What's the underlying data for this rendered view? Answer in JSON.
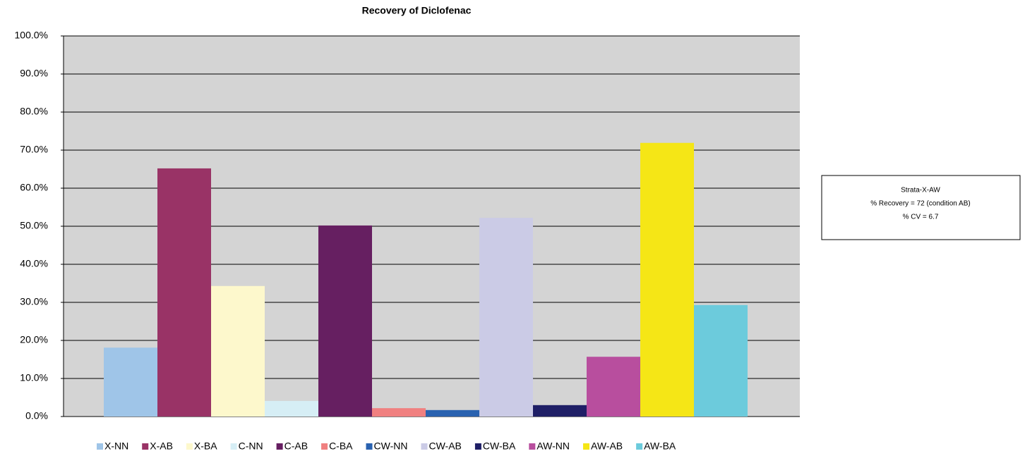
{
  "chart_data": {
    "type": "bar",
    "title": "Recovery of Diclofenac",
    "series": [
      {
        "name": "X-NN",
        "color": "#9fc5e8",
        "values": [
          18.1
        ]
      },
      {
        "name": "X-AB",
        "color": "#993366",
        "values": [
          65.2
        ]
      },
      {
        "name": "X-BA",
        "color": "#fdf8cc",
        "values": [
          34.3
        ]
      },
      {
        "name": "C-NN",
        "color": "#d6eef5",
        "values": [
          4.1
        ]
      },
      {
        "name": "C-AB",
        "color": "#661f61",
        "values": [
          50.2
        ]
      },
      {
        "name": "C-BA",
        "color": "#f08080",
        "values": [
          2.2
        ]
      },
      {
        "name": "CW-NN",
        "color": "#2a62b0",
        "values": [
          1.7
        ]
      },
      {
        "name": "CW-AB",
        "color": "#cbcbe6",
        "values": [
          52.2
        ]
      },
      {
        "name": "CW-BA",
        "color": "#1f1f66",
        "values": [
          3.0
        ]
      },
      {
        "name": "AW-NN",
        "color": "#b84e9e",
        "values": [
          15.7
        ]
      },
      {
        "name": "AW-AB",
        "color": "#f5e616",
        "values": [
          71.9
        ]
      },
      {
        "name": "AW-BA",
        "color": "#6ccbdc",
        "values": [
          29.3
        ]
      }
    ],
    "ylim": [
      0,
      100
    ],
    "yticks": [
      {
        "value": 0,
        "label": "0.0%"
      },
      {
        "value": 10,
        "label": "10.0%"
      },
      {
        "value": 20,
        "label": "20.0%"
      },
      {
        "value": 30,
        "label": "30.0%"
      },
      {
        "value": 40,
        "label": "40.0%"
      },
      {
        "value": 50,
        "label": "50.0%"
      },
      {
        "value": 60,
        "label": "60.0%"
      },
      {
        "value": 70,
        "label": "70.0%"
      },
      {
        "value": 80,
        "label": "80.0%"
      },
      {
        "value": 90,
        "label": "90.0%"
      },
      {
        "value": 100,
        "label": "100.0%"
      }
    ],
    "grid": true,
    "legend": "bottom",
    "annotations": [
      "Strata-X-AW",
      "% Recovery = 72 (condition AB)",
      "% CV = 6.7"
    ]
  }
}
